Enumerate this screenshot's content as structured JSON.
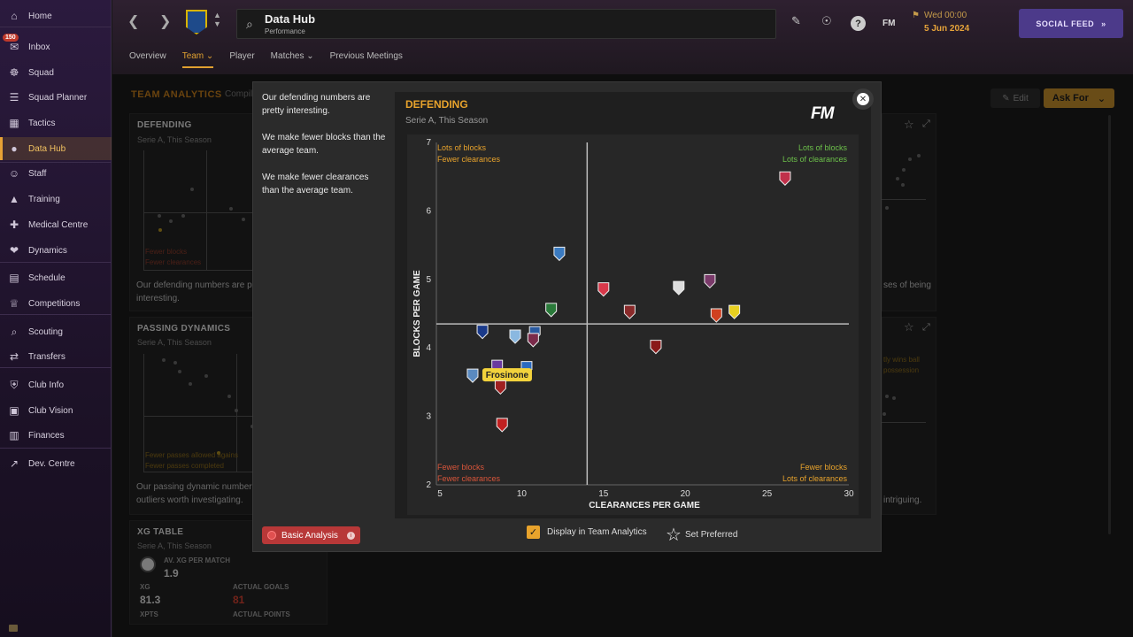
{
  "sidebar": {
    "items": [
      {
        "label": "Home",
        "icon": "home-icon"
      },
      {
        "label": "Inbox",
        "icon": "inbox-icon"
      },
      {
        "label": "Squad",
        "icon": "shirt-icon"
      },
      {
        "label": "Squad Planner",
        "icon": "clipboard-icon"
      },
      {
        "label": "Tactics",
        "icon": "tactics-board-icon"
      },
      {
        "label": "Data Hub",
        "icon": "data-hub-icon"
      },
      {
        "label": "Staff",
        "icon": "people-icon"
      },
      {
        "label": "Training",
        "icon": "cone-icon"
      },
      {
        "label": "Medical Centre",
        "icon": "medical-icon"
      },
      {
        "label": "Dynamics",
        "icon": "dynamics-icon"
      },
      {
        "label": "Schedule",
        "icon": "calendar-icon"
      },
      {
        "label": "Competitions",
        "icon": "trophy-icon"
      },
      {
        "label": "Scouting",
        "icon": "magnifier-icon"
      },
      {
        "label": "Transfers",
        "icon": "transfer-arrows-icon"
      },
      {
        "label": "Club Info",
        "icon": "shield-icon"
      },
      {
        "label": "Club Vision",
        "icon": "briefcase-icon"
      },
      {
        "label": "Finances",
        "icon": "wallet-icon"
      },
      {
        "label": "Dev. Centre",
        "icon": "trend-icon"
      }
    ],
    "inbox_badge": "150"
  },
  "topbar": {
    "hub_title": "Data Hub",
    "hub_subtitle": "Performance",
    "fm": "FM",
    "date_line1": "Wed 00:00",
    "date_line2": "5 Jun 2024",
    "social_label": "SOCIAL FEED",
    "tabs": [
      "Overview",
      "Team",
      "Player",
      "Matches",
      "Previous Meetings"
    ]
  },
  "analytics": {
    "title": "TEAM ANALYTICS",
    "subtitle": "Compil",
    "edit_label": "Edit",
    "askfor_label": "Ask For",
    "defending_card": {
      "title": "DEFENDING",
      "sub": "Serie A, This Season",
      "label1": "Fewer blocks",
      "label2": "Fewer clearances",
      "text1": "Our defending numbers are p",
      "text2": "interesting."
    },
    "passing_card": {
      "title": "PASSING DYNAMICS",
      "sub": "Serie A, This Season",
      "label1": "Fewer passes allowed agains",
      "label2": "Fewer passes completed",
      "text1": "Our passing dynamic number",
      "text2": "outliers worth investigating."
    },
    "xg_card": {
      "title": "XG TABLE",
      "sub": "Serie A, This Season",
      "av_label": "AV. XG PER MATCH",
      "av_value": "1.9",
      "xg_label": "XG",
      "xg_value": "81.3",
      "goals_label": "ACTUAL GOALS",
      "goals_value": "81",
      "xpts_label": "XPTS",
      "points_label": "ACTUAL POINTS"
    },
    "right_card1_text": "ses of being",
    "right_card2_line1": "tly wins ball",
    "right_card2_line2": "possession",
    "right_card2_text": "intriguing."
  },
  "modal": {
    "paragraphs": [
      "Our defending numbers are pretty interesting.",
      "We make fewer blocks than the average team.",
      "We make fewer clearances than the average team."
    ],
    "basic_analysis_label": "Basic Analysis",
    "display_label": "Display in Team Analytics",
    "set_preferred_label": "Set Preferred",
    "chart_title": "DEFENDING",
    "chart_subtitle": "Serie A, This Season",
    "fm_logo": "FM"
  },
  "chart_data": {
    "type": "scatter",
    "xlabel": "CLEARANCES PER GAME",
    "ylabel": "BLOCKS PER GAME",
    "xlim": [
      5,
      30
    ],
    "ylim": [
      2,
      7
    ],
    "x_ticks": [
      5,
      10,
      15,
      20,
      25,
      30
    ],
    "y_ticks": [
      2,
      3,
      4,
      5,
      6,
      7
    ],
    "avg_x": 14,
    "avg_y": 4.35,
    "quadrant_labels": {
      "top_left": [
        "Lots of blocks",
        "Fewer clearances"
      ],
      "top_right": [
        "Lots of blocks",
        "Lots of clearances"
      ],
      "bottom_left": [
        "Fewer blocks",
        "Fewer clearances"
      ],
      "bottom_right": [
        "Fewer blocks",
        "Lots of clearances"
      ]
    },
    "colors": {
      "top_left": "#e8a32c",
      "top_right": "#6cc04a",
      "bottom_left": "#d8553a",
      "bottom_right": "#e8a32c",
      "highlight": "#f2d23c"
    },
    "highlight_label": "Frosinone",
    "points": [
      {
        "x": 26.1,
        "y": 6.48,
        "color": "#c0304a",
        "highlight": false
      },
      {
        "x": 12.3,
        "y": 5.38,
        "color": "#3a7ac0",
        "highlight": false
      },
      {
        "x": 15.0,
        "y": 4.86,
        "color": "#d8384a",
        "highlight": false
      },
      {
        "x": 19.6,
        "y": 4.88,
        "color": "#dddddd",
        "highlight": false
      },
      {
        "x": 21.5,
        "y": 4.98,
        "color": "#7a3a6a",
        "highlight": false
      },
      {
        "x": 11.8,
        "y": 4.56,
        "color": "#2a7a3a",
        "highlight": false
      },
      {
        "x": 16.6,
        "y": 4.53,
        "color": "#8a2a2a",
        "highlight": false
      },
      {
        "x": 21.9,
        "y": 4.48,
        "color": "#d04020",
        "highlight": false
      },
      {
        "x": 23.0,
        "y": 4.53,
        "color": "#e8d020",
        "highlight": false
      },
      {
        "x": 7.6,
        "y": 4.24,
        "color": "#1a3a8a",
        "highlight": false
      },
      {
        "x": 9.6,
        "y": 4.17,
        "color": "#8ab8e0",
        "highlight": false
      },
      {
        "x": 10.8,
        "y": 4.22,
        "color": "#2a5aa0",
        "highlight": false
      },
      {
        "x": 10.7,
        "y": 4.12,
        "color": "#7a2a4a",
        "highlight": false
      },
      {
        "x": 18.2,
        "y": 4.02,
        "color": "#8a1a1a",
        "highlight": false
      },
      {
        "x": 8.5,
        "y": 3.73,
        "color": "#6a3aa0",
        "highlight": false
      },
      {
        "x": 10.3,
        "y": 3.71,
        "color": "#2a6ac0",
        "highlight": false
      },
      {
        "x": 7.0,
        "y": 3.6,
        "color": "#5a8ac0",
        "highlight": true
      },
      {
        "x": 8.7,
        "y": 3.43,
        "color": "#a02020",
        "highlight": false
      },
      {
        "x": 8.8,
        "y": 2.88,
        "color": "#c02020",
        "highlight": false
      }
    ]
  }
}
